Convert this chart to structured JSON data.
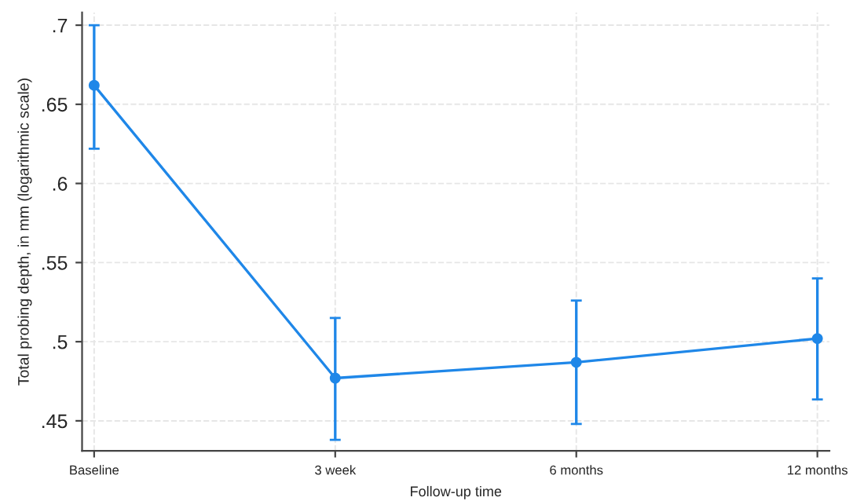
{
  "chart_data": {
    "type": "line",
    "xlabel": "Follow-up time",
    "ylabel": "Total probing depth, in mm (logarithmic scale)",
    "categories": [
      "Baseline",
      "3 week",
      "6 months",
      "12 months"
    ],
    "series": [
      {
        "color": "#1f87e8",
        "values": [
          0.662,
          0.477,
          0.487,
          0.502
        ],
        "errors": [
          [
            0.622,
            0.7
          ],
          [
            0.438,
            0.515
          ],
          [
            0.448,
            0.526
          ],
          [
            0.4635,
            0.54
          ]
        ]
      }
    ],
    "ylim": [
      0.431,
      0.708
    ],
    "yticks": [
      {
        "value": 0.45,
        "label": ".45"
      },
      {
        "value": 0.5,
        "label": ".5"
      },
      {
        "value": 0.55,
        "label": ".55"
      },
      {
        "value": 0.6,
        "label": ".6"
      },
      {
        "value": 0.65,
        "label": ".65"
      },
      {
        "value": 0.7,
        "label": ".7"
      }
    ],
    "grid": true,
    "marker": "circle",
    "line_style": "solid"
  }
}
